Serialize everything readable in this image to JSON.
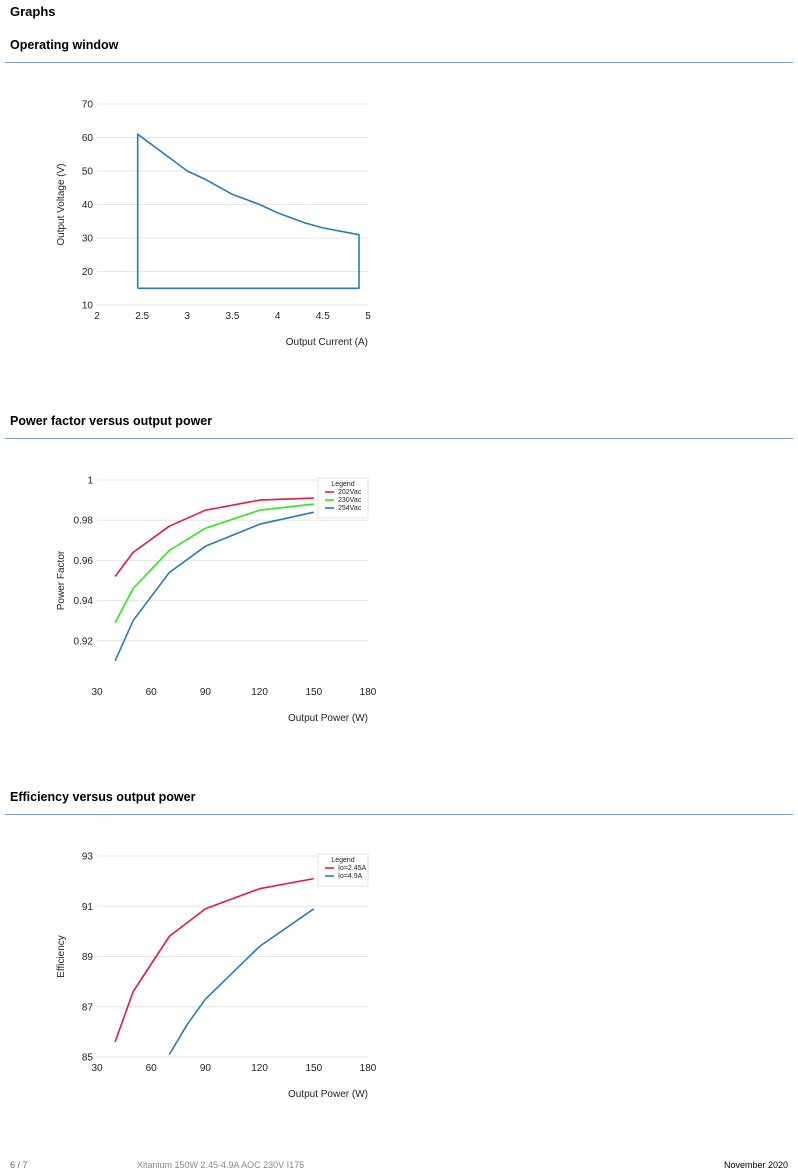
{
  "page_title": "Graphs",
  "sections": [
    {
      "title": "Operating window"
    },
    {
      "title": "Power factor versus output power"
    },
    {
      "title": "Efficiency versus output power"
    }
  ],
  "chart_data": [
    {
      "type": "line",
      "xlabel": "Output Current (A)",
      "ylabel": "Output Voltage (V)",
      "xlim": [
        2,
        5
      ],
      "ylim": [
        10,
        70
      ],
      "xticks": [
        2,
        2.5,
        3,
        3.5,
        4,
        4.5,
        5
      ],
      "yticks": [
        10,
        20,
        30,
        40,
        50,
        60,
        70
      ],
      "grid": true,
      "series": [
        {
          "color": "#2a7ab9",
          "x": [
            2.45,
            2.45,
            2.8,
            3.0,
            3.2,
            3.5,
            3.8,
            4.0,
            4.3,
            4.5,
            4.9,
            4.9,
            2.45
          ],
          "y": [
            15,
            61,
            54,
            50,
            47.5,
            43,
            40,
            37.5,
            34.5,
            33,
            31,
            15,
            15
          ]
        }
      ]
    },
    {
      "type": "line",
      "xlabel": "Output Power (W)",
      "ylabel": "Power Factor",
      "xlim": [
        30,
        180
      ],
      "ylim": [
        0.9,
        1
      ],
      "xticks": [
        30,
        60,
        90,
        120,
        150,
        180
      ],
      "yticks": [
        0.92,
        0.94,
        0.96,
        0.98,
        1
      ],
      "grid": true,
      "legend": {
        "title": "Legend",
        "position": "top-right"
      },
      "series": [
        {
          "name": "202Vac",
          "color": "#e8193c",
          "x": [
            40,
            50,
            70,
            90,
            120,
            150
          ],
          "y": [
            0.952,
            0.964,
            0.977,
            0.985,
            0.99,
            0.991
          ]
        },
        {
          "name": "230Vac",
          "color": "#2ee81a",
          "x": [
            40,
            50,
            70,
            90,
            120,
            150
          ],
          "y": [
            0.929,
            0.946,
            0.965,
            0.976,
            0.985,
            0.988
          ]
        },
        {
          "name": "254Vac",
          "color": "#2a7ab9",
          "x": [
            40,
            50,
            70,
            90,
            120,
            150
          ],
          "y": [
            0.91,
            0.93,
            0.954,
            0.967,
            0.978,
            0.984
          ]
        }
      ]
    },
    {
      "type": "line",
      "xlabel": "Output Power (W)",
      "ylabel": "Efficiency",
      "xlim": [
        30,
        180
      ],
      "ylim": [
        85,
        93
      ],
      "xticks": [
        30,
        60,
        90,
        120,
        150,
        180
      ],
      "yticks": [
        85,
        87,
        89,
        91,
        93
      ],
      "grid": true,
      "legend": {
        "title": "Legend",
        "position": "top-right"
      },
      "series": [
        {
          "name": "Io=2.45A",
          "color": "#e8193c",
          "x": [
            40,
            50,
            60,
            70,
            90,
            120,
            150
          ],
          "y": [
            85.6,
            87.6,
            88.7,
            89.8,
            90.9,
            91.7,
            92.1
          ]
        },
        {
          "name": "Io=4.9A",
          "color": "#2a7ab9",
          "x": [
            70,
            80,
            90,
            120,
            150
          ],
          "y": [
            85.1,
            86.3,
            87.3,
            89.4,
            90.9
          ]
        }
      ]
    }
  ],
  "footer": {
    "page": "6 / 7",
    "product": "Xitanium 150W 2.45-4.9A AOC 230V I175",
    "date": "November 2020"
  }
}
